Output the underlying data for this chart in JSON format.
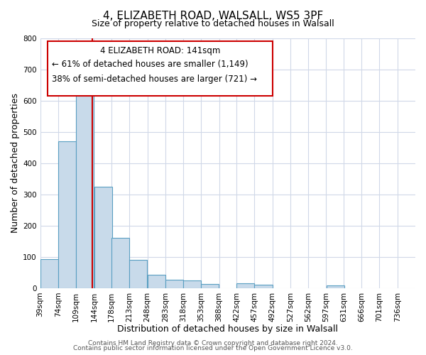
{
  "title": "4, ELIZABETH ROAD, WALSALL, WS5 3PF",
  "subtitle": "Size of property relative to detached houses in Walsall",
  "xlabel": "Distribution of detached houses by size in Walsall",
  "ylabel": "Number of detached properties",
  "bar_left_edges": [
    39,
    74,
    109,
    144,
    178,
    213,
    248,
    283,
    318,
    353,
    388,
    422,
    457,
    492,
    527,
    562,
    597,
    631,
    666,
    701
  ],
  "bar_heights": [
    93,
    470,
    645,
    325,
    160,
    90,
    42,
    28,
    24,
    14,
    0,
    15,
    12,
    0,
    0,
    0,
    8,
    0,
    0,
    0
  ],
  "bin_width": 35,
  "bar_color": "#c8daea",
  "bar_edgecolor": "#5a9fc2",
  "vline_x": 141,
  "vline_color": "#cc0000",
  "ylim": [
    0,
    800
  ],
  "yticks": [
    0,
    100,
    200,
    300,
    400,
    500,
    600,
    700,
    800
  ],
  "xtick_labels": [
    "39sqm",
    "74sqm",
    "109sqm",
    "144sqm",
    "178sqm",
    "213sqm",
    "248sqm",
    "283sqm",
    "318sqm",
    "353sqm",
    "388sqm",
    "422sqm",
    "457sqm",
    "492sqm",
    "527sqm",
    "562sqm",
    "597sqm",
    "631sqm",
    "666sqm",
    "701sqm",
    "736sqm"
  ],
  "annotation_line1": "4 ELIZABETH ROAD: 141sqm",
  "annotation_line2": "← 61% of detached houses are smaller (1,149)",
  "annotation_line3": "38% of semi-detached houses are larger (721) →",
  "footer_line1": "Contains HM Land Registry data © Crown copyright and database right 2024.",
  "footer_line2": "Contains public sector information licensed under the Open Government Licence v3.0.",
  "bg_color": "#ffffff",
  "grid_color": "#d0d8e8",
  "title_fontsize": 11,
  "subtitle_fontsize": 9,
  "axis_label_fontsize": 9,
  "tick_fontsize": 7.5,
  "annotation_fontsize": 8.5,
  "footer_fontsize": 6.5
}
